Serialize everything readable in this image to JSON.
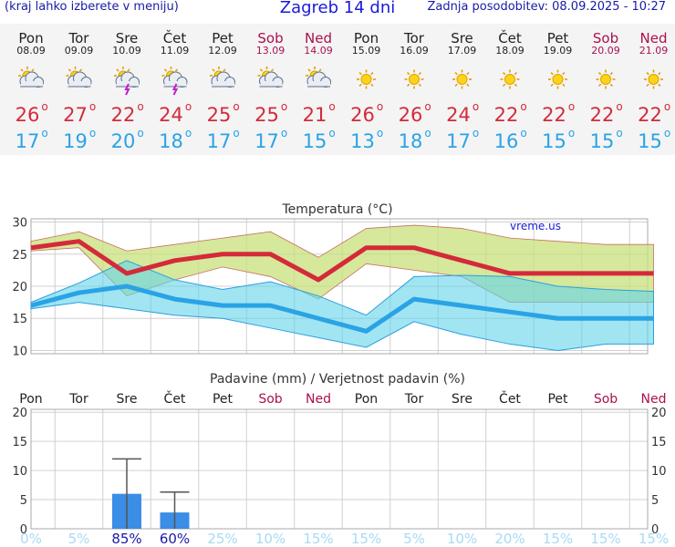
{
  "header": {
    "menu_hint": "(kraj lahko izberete v meniju)",
    "title": "Zagreb 14 dni",
    "last_update": "Zadnja posodobitev: 08.09.2025 - 10:27"
  },
  "days": [
    {
      "day": "Pon",
      "date": "08.09",
      "icon": "partly-cloudy-icon",
      "max": "26",
      "min": "17",
      "weekend": false
    },
    {
      "day": "Tor",
      "date": "09.09",
      "icon": "partly-cloudy-icon",
      "max": "27",
      "min": "19",
      "weekend": false
    },
    {
      "day": "Sre",
      "date": "10.09",
      "icon": "thunderstorm-icon",
      "max": "22",
      "min": "20",
      "weekend": false
    },
    {
      "day": "Čet",
      "date": "11.09",
      "icon": "thunderstorm-icon",
      "max": "24",
      "min": "18",
      "weekend": false
    },
    {
      "day": "Pet",
      "date": "12.09",
      "icon": "partly-cloudy-icon",
      "max": "25",
      "min": "17",
      "weekend": false
    },
    {
      "day": "Sob",
      "date": "13.09",
      "icon": "partly-cloudy-icon",
      "max": "25",
      "min": "17",
      "weekend": true
    },
    {
      "day": "Ned",
      "date": "14.09",
      "icon": "sun-cloud-icon",
      "max": "21",
      "min": "15",
      "weekend": true
    },
    {
      "day": "Pon",
      "date": "15.09",
      "icon": "sun-icon",
      "max": "26",
      "min": "13",
      "weekend": false
    },
    {
      "day": "Tor",
      "date": "16.09",
      "icon": "sun-icon",
      "max": "26",
      "min": "18",
      "weekend": false
    },
    {
      "day": "Sre",
      "date": "17.09",
      "icon": "sun-icon",
      "max": "24",
      "min": "17",
      "weekend": false
    },
    {
      "day": "Čet",
      "date": "18.09",
      "icon": "sun-icon",
      "max": "22",
      "min": "16",
      "weekend": false
    },
    {
      "day": "Pet",
      "date": "19.09",
      "icon": "sun-icon",
      "max": "22",
      "min": "15",
      "weekend": false
    },
    {
      "day": "Sob",
      "date": "20.09",
      "icon": "sun-icon",
      "max": "22",
      "min": "15",
      "weekend": true
    },
    {
      "day": "Ned",
      "date": "21.09",
      "icon": "sun-icon",
      "max": "22",
      "min": "15",
      "weekend": true
    }
  ],
  "degree_symbol": "o",
  "colors": {
    "max": "#d42a3a",
    "min": "#2aa3e6",
    "weekend": "#aa1050",
    "weekday": "#222222"
  },
  "chart_data": [
    {
      "type": "line",
      "title": "Temperatura (°C)",
      "watermark": "vreme.us",
      "ylim": [
        9.5,
        30.5
      ],
      "yticks": [
        10,
        15,
        20,
        25,
        30
      ],
      "grid": true,
      "series": [
        {
          "values": [
            26,
            27,
            22,
            24,
            25,
            25,
            21,
            26,
            26,
            24,
            22,
            22,
            22,
            22
          ],
          "color": "#d42a3a"
        },
        {
          "values": [
            17,
            19,
            20,
            18,
            17,
            17,
            15,
            13,
            18,
            17,
            16,
            15,
            15,
            15
          ],
          "color": "#2aa3e6"
        }
      ],
      "max_band": {
        "upper": [
          27,
          28.5,
          25.5,
          26.5,
          27.5,
          28.5,
          24.5,
          29,
          29.5,
          29,
          27.5,
          27,
          26.5,
          26.5
        ],
        "lower": [
          25.5,
          26,
          18.5,
          21,
          23,
          21.5,
          18,
          23.5,
          22.5,
          21.5,
          17.5,
          17.5,
          17.5,
          17.5
        ]
      },
      "min_band": {
        "upper": [
          17.5,
          20.5,
          24,
          21,
          19.5,
          20.7,
          18.5,
          15.5,
          21.5,
          21.7,
          21.5,
          20,
          19.5,
          19.2
        ],
        "lower": [
          16.5,
          17.5,
          16.5,
          15.5,
          15,
          13.5,
          12,
          10.5,
          14.5,
          12.5,
          11,
          10,
          11,
          11
        ]
      }
    },
    {
      "type": "bar",
      "title": "Padavine (mm) / Verjetnost padavin (%)",
      "categories": [
        "Pon",
        "Tor",
        "Sre",
        "Čet",
        "Pet",
        "Sob",
        "Ned",
        "Pon",
        "Tor",
        "Sre",
        "Čet",
        "Pet",
        "Sob",
        "Ned"
      ],
      "values": [
        0,
        0,
        6,
        2.8,
        0,
        0,
        0,
        0,
        0,
        0,
        0,
        0,
        0,
        0
      ],
      "error_high": [
        0,
        0,
        12,
        6.3,
        0,
        0,
        0,
        0,
        0,
        0,
        0,
        0,
        0,
        0
      ],
      "probability": [
        "0%",
        "5%",
        "85%",
        "60%",
        "25%",
        "10%",
        "15%",
        "15%",
        "5%",
        "10%",
        "20%",
        "15%",
        "15%",
        "15%"
      ],
      "ylim": [
        0,
        20.5
      ],
      "yticks": [
        0,
        5,
        10,
        15,
        20
      ],
      "grid": true,
      "bar_color": "#3b8de6"
    }
  ]
}
